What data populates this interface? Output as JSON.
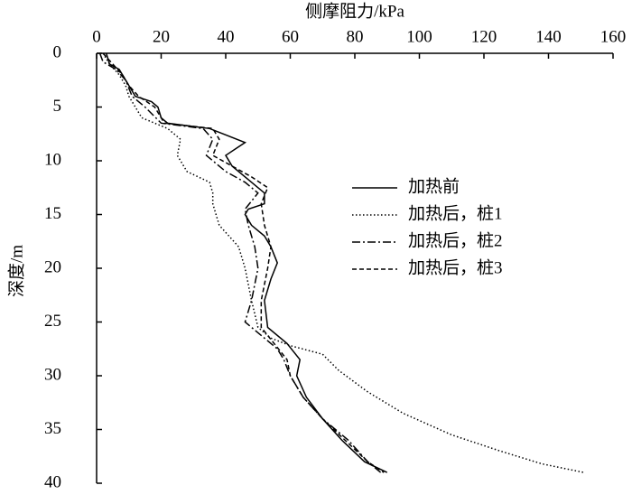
{
  "chart_data": {
    "type": "line",
    "x_label": "侧摩阻力/kPa",
    "y_label": "深度/m",
    "xlim": [
      0,
      160
    ],
    "xticks": [
      0,
      20,
      40,
      60,
      80,
      100,
      120,
      140,
      160
    ],
    "ylim": [
      0,
      40
    ],
    "yticks": [
      0,
      5,
      10,
      15,
      20,
      25,
      30,
      35,
      40
    ],
    "y_inverted": true,
    "x_axis_position": "top",
    "series": [
      {
        "name": "加热前",
        "color": "#000000",
        "dash": "solid",
        "x": [
          3,
          4,
          7,
          8,
          10,
          12,
          17,
          19,
          20,
          22,
          35,
          46,
          40,
          42,
          48,
          52,
          52,
          47,
          46,
          48,
          52,
          54,
          56,
          54,
          52,
          53,
          59,
          63,
          62,
          65,
          70,
          76,
          83,
          90
        ],
        "y": [
          0,
          1,
          1.5,
          2,
          3,
          4,
          4.5,
          5,
          6,
          6.5,
          7,
          8.3,
          9.5,
          10.5,
          12,
          13,
          14,
          14.5,
          15,
          16,
          17,
          18,
          19.5,
          21,
          23,
          25.5,
          27,
          28.5,
          30,
          32,
          34,
          36,
          38,
          39
        ]
      },
      {
        "name": "加热后，桩1",
        "color": "#000000",
        "dash": "dotted",
        "x": [
          2,
          4,
          7,
          9,
          10,
          12,
          14,
          22,
          26,
          25,
          28,
          35,
          36,
          36,
          38,
          44,
          46,
          48,
          50,
          54,
          60,
          70,
          75,
          84,
          95,
          110,
          125,
          138,
          151
        ],
        "y": [
          0,
          1,
          2,
          3,
          4,
          5,
          6,
          7,
          8,
          9.5,
          11,
          12,
          13,
          14,
          16,
          18,
          20,
          23,
          25.5,
          26.5,
          27.2,
          28,
          29.5,
          31.5,
          33.5,
          35.5,
          37,
          38.2,
          39
        ]
      },
      {
        "name": "加热后，桩2",
        "color": "#000000",
        "dash": "dashdot",
        "x": [
          1,
          2,
          6,
          9,
          11,
          15,
          20,
          33,
          36,
          34,
          40,
          46,
          50,
          46,
          47,
          49,
          50,
          48,
          46,
          50,
          56,
          58,
          60,
          64,
          70,
          78,
          84,
          88
        ],
        "y": [
          0,
          0.8,
          1.5,
          2.5,
          4,
          5,
          6.5,
          7,
          8,
          9.5,
          11,
          12,
          13,
          14.5,
          16,
          18,
          20,
          23,
          25,
          26,
          27.5,
          28.5,
          30,
          32,
          34,
          36,
          38,
          39
        ]
      },
      {
        "name": "加热后，桩3",
        "color": "#000000",
        "dash": "dashed",
        "x": [
          2,
          5,
          8,
          10,
          13,
          18,
          21,
          36,
          38,
          36,
          42,
          48,
          53,
          51,
          52,
          54,
          53,
          51,
          51,
          55,
          59,
          60,
          64,
          70,
          77,
          84,
          89
        ],
        "y": [
          0,
          1,
          2,
          3,
          4,
          5,
          6.5,
          7,
          8,
          9.5,
          10.5,
          11.5,
          12.5,
          14,
          16,
          18,
          20,
          23,
          25.5,
          27,
          28.5,
          30,
          32,
          34,
          36,
          38,
          39
        ]
      }
    ]
  }
}
